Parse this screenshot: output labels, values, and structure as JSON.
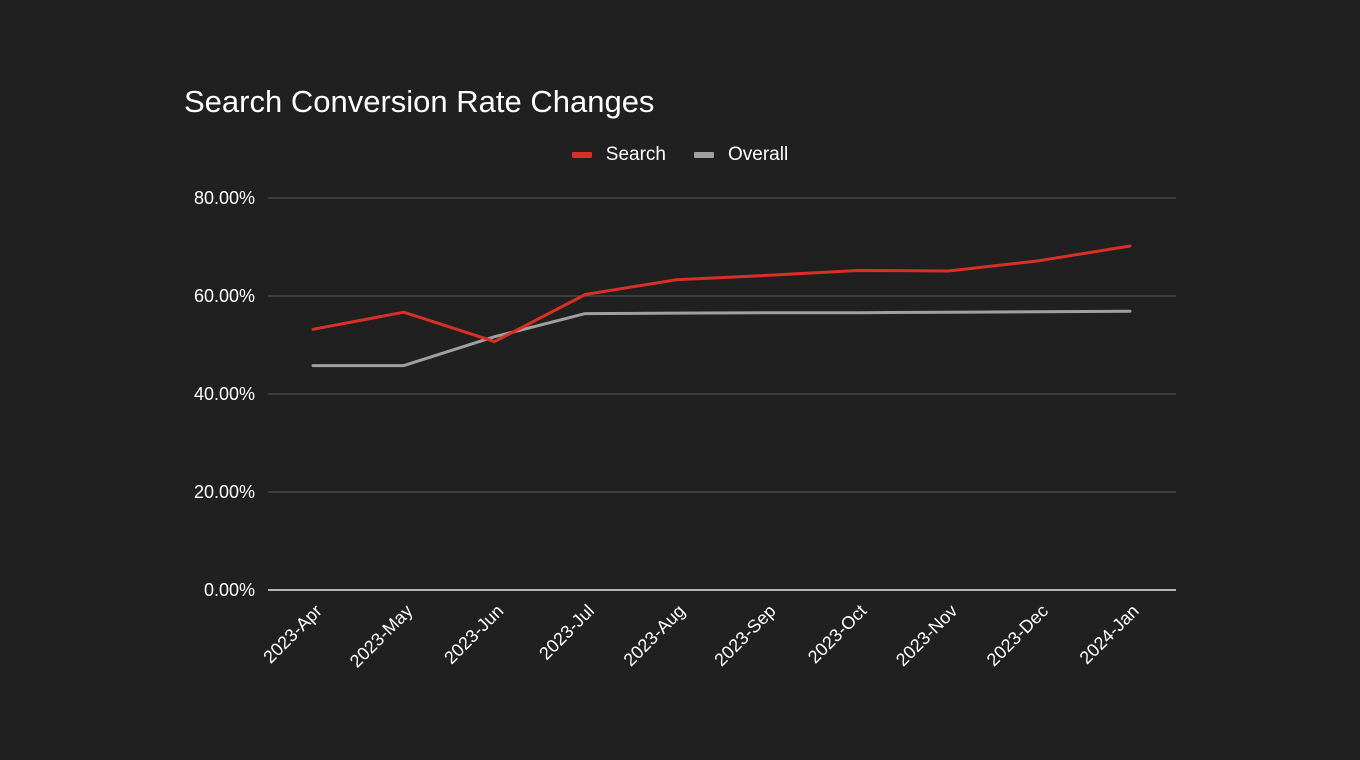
{
  "chart_data": {
    "type": "line",
    "title": "Search Conversion Rate Changes",
    "xlabel": "",
    "ylabel": "",
    "categories": [
      "2023-Apr",
      "2023-May",
      "2023-Jun",
      "2023-Jul",
      "2023-Aug",
      "2023-Sep",
      "2023-Oct",
      "2023-Nov",
      "2023-Dec",
      "2024-Jan"
    ],
    "y_ticks": [
      "0.00%",
      "20.00%",
      "40.00%",
      "60.00%",
      "80.00%"
    ],
    "ylim": [
      0,
      80
    ],
    "grid": true,
    "legend_position": "top-center",
    "series": [
      {
        "name": "Search",
        "color": "#d93025",
        "values": [
          53.2,
          56.7,
          50.7,
          60.3,
          63.3,
          64.2,
          65.2,
          65.1,
          67.2,
          70.2
        ]
      },
      {
        "name": "Overall",
        "color": "#a0a0a0",
        "values": [
          45.8,
          45.8,
          51.7,
          56.4,
          56.5,
          56.6,
          56.6,
          56.7,
          56.8,
          56.9
        ]
      }
    ]
  }
}
